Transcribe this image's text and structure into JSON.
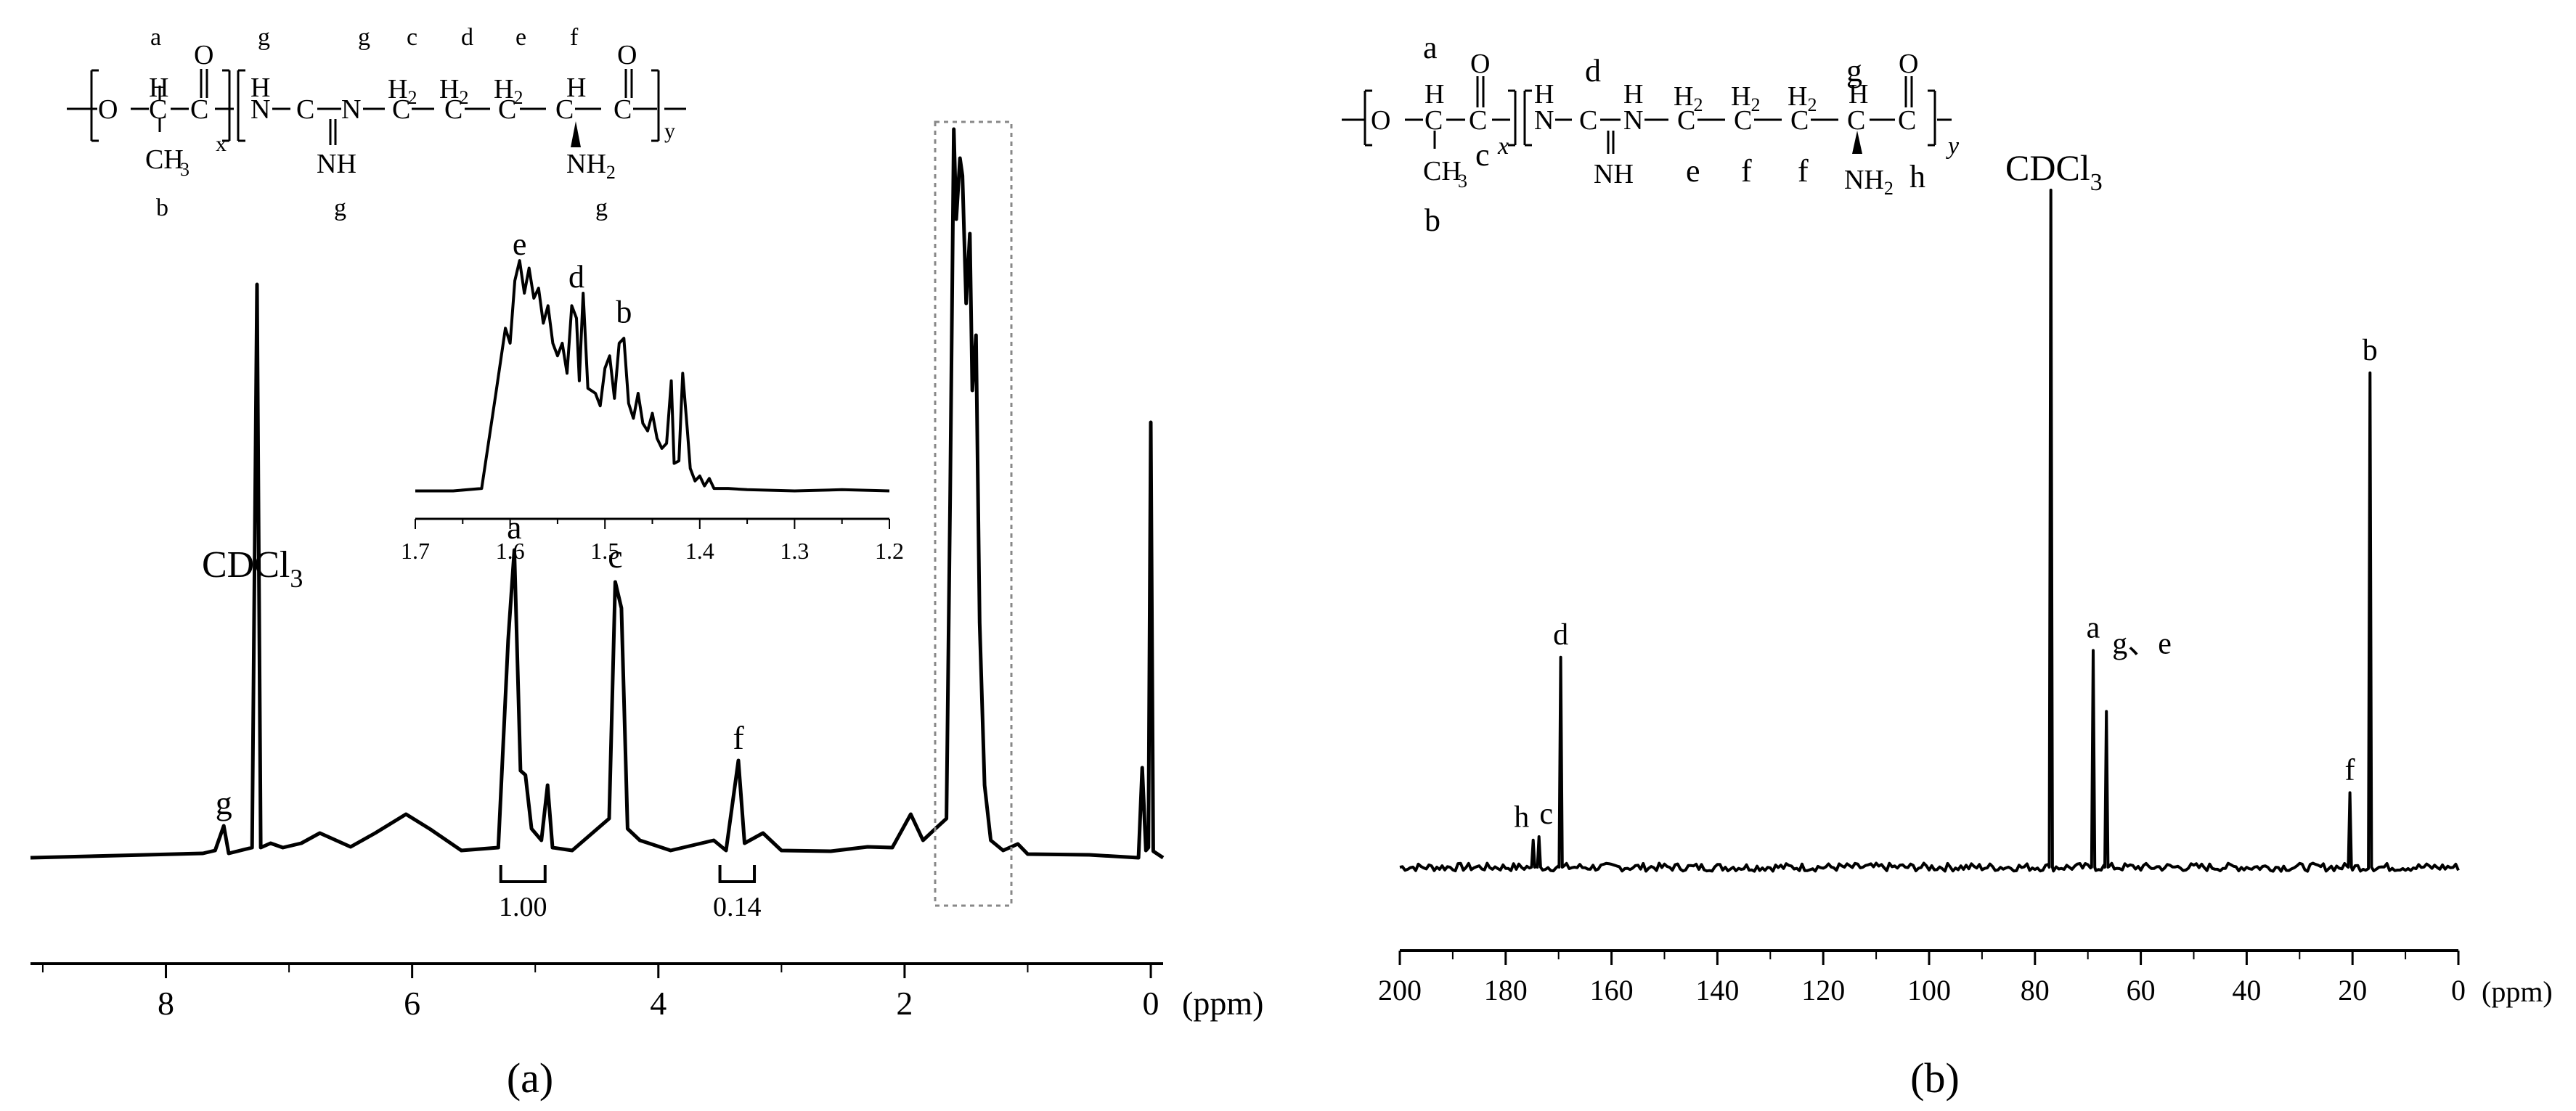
{
  "chart_data": [
    {
      "panel_label": "(a)",
      "type": "line",
      "x_unit": "(ppm)",
      "xlim": [
        9.1,
        -0.1
      ],
      "x_ticks": [
        "8",
        "6",
        "4",
        "2",
        "0"
      ],
      "solvent_label": "CDCl",
      "solvent_sub": "3",
      "structure": {
        "x_sub": "x",
        "y_sub": "y",
        "top_letters": [
          "a",
          "g",
          "g",
          "c",
          "d",
          "e",
          "f"
        ],
        "bottom_letters": [
          "b",
          "g",
          "g"
        ],
        "nh": "NH",
        "ch3": "CH",
        "nh2": "NH",
        "h2": "H"
      },
      "peaks": [
        {
          "label": "g",
          "ppm": 7.53,
          "intensity": 0.04
        },
        {
          "label": "",
          "ppm": 7.26,
          "intensity": 0.79
        },
        {
          "label": "a",
          "ppm": 5.17,
          "intensity": 0.42
        },
        {
          "label": "c",
          "ppm": 4.35,
          "intensity": 0.38
        },
        {
          "label": "f",
          "ppm": 3.35,
          "intensity": 0.13
        }
      ],
      "spectrum": [
        [
          9.1,
          0
        ],
        [
          7.7,
          0.002
        ],
        [
          7.6,
          0.01
        ],
        [
          7.53,
          0.04
        ],
        [
          7.49,
          0.006
        ],
        [
          7.3,
          0.01
        ],
        [
          7.26,
          0.79
        ],
        [
          7.23,
          0.01
        ],
        [
          7.15,
          0.02
        ],
        [
          7.05,
          0.01
        ],
        [
          6.9,
          0.02
        ],
        [
          6.75,
          0.03
        ],
        [
          6.5,
          0.015
        ],
        [
          6.3,
          0.03
        ],
        [
          6.05,
          0.06
        ],
        [
          5.85,
          0.035
        ],
        [
          5.6,
          0.01
        ],
        [
          5.3,
          0.01
        ],
        [
          5.22,
          0.3
        ],
        [
          5.17,
          0.42
        ],
        [
          5.12,
          0.12
        ],
        [
          5.08,
          0.11
        ],
        [
          5.03,
          0.04
        ],
        [
          4.95,
          0.02
        ],
        [
          4.9,
          0.1
        ],
        [
          4.86,
          0.01
        ],
        [
          4.7,
          0.01
        ],
        [
          4.4,
          0.05
        ],
        [
          4.35,
          0.38
        ],
        [
          4.3,
          0.34
        ],
        [
          4.25,
          0.04
        ],
        [
          4.15,
          0.02
        ],
        [
          3.9,
          0.01
        ],
        [
          3.55,
          0.02
        ],
        [
          3.45,
          0.01
        ],
        [
          3.35,
          0.13
        ],
        [
          3.3,
          0.02
        ],
        [
          3.15,
          0.03
        ],
        [
          3.0,
          0.01
        ],
        [
          2.6,
          0.005
        ],
        [
          2.3,
          0.015
        ],
        [
          2.1,
          0.01
        ],
        [
          1.95,
          0.06
        ],
        [
          1.85,
          0.02
        ],
        [
          1.75,
          0.04
        ],
        [
          1.66,
          0.05
        ],
        [
          1.63,
          0.5
        ],
        [
          1.6,
          1.0
        ],
        [
          1.58,
          0.88
        ],
        [
          1.55,
          0.96
        ],
        [
          1.53,
          0.94
        ],
        [
          1.5,
          0.76
        ],
        [
          1.47,
          0.86
        ],
        [
          1.45,
          0.64
        ],
        [
          1.42,
          0.72
        ],
        [
          1.39,
          0.32
        ],
        [
          1.35,
          0.1
        ],
        [
          1.3,
          0.02
        ],
        [
          1.2,
          0.01
        ],
        [
          1.08,
          0.015
        ],
        [
          1.0,
          0.005
        ],
        [
          0.5,
          0
        ],
        [
          0.1,
          0
        ],
        [
          0.07,
          0.12
        ],
        [
          0.04,
          0.01
        ],
        [
          0.02,
          0.01
        ],
        [
          0.0,
          0.6
        ],
        [
          -0.02,
          0.005
        ],
        [
          -0.1,
          0
        ]
      ],
      "integrals": [
        {
          "label": "1.00",
          "from": 5.28,
          "to": 4.92
        },
        {
          "label": "0.14",
          "from": 3.5,
          "to": 3.22
        }
      ],
      "inset": {
        "xlim": [
          1.7,
          1.2
        ],
        "x_ticks": [
          "1.7",
          "1.6",
          "1.5",
          "1.4",
          "1.3",
          "1.2"
        ],
        "peaks": [
          {
            "label": "e",
            "ppm": 1.59,
            "intensity": 0.93
          },
          {
            "label": "d",
            "ppm": 1.53,
            "intensity": 0.8
          },
          {
            "label": "b",
            "ppm": 1.48,
            "intensity": 0.66
          }
        ],
        "spectrum": [
          [
            1.7,
            0.01
          ],
          [
            1.66,
            0.01
          ],
          [
            1.63,
            0.02
          ],
          [
            1.615,
            0.4
          ],
          [
            1.605,
            0.66
          ],
          [
            1.6,
            0.6
          ],
          [
            1.595,
            0.85
          ],
          [
            1.59,
            0.93
          ],
          [
            1.585,
            0.8
          ],
          [
            1.58,
            0.9
          ],
          [
            1.575,
            0.78
          ],
          [
            1.57,
            0.82
          ],
          [
            1.565,
            0.68
          ],
          [
            1.56,
            0.75
          ],
          [
            1.555,
            0.6
          ],
          [
            1.55,
            0.55
          ],
          [
            1.545,
            0.6
          ],
          [
            1.54,
            0.48
          ],
          [
            1.535,
            0.75
          ],
          [
            1.53,
            0.7
          ],
          [
            1.527,
            0.45
          ],
          [
            1.523,
            0.8
          ],
          [
            1.518,
            0.42
          ],
          [
            1.51,
            0.4
          ],
          [
            1.505,
            0.35
          ],
          [
            1.5,
            0.5
          ],
          [
            1.495,
            0.55
          ],
          [
            1.49,
            0.38
          ],
          [
            1.485,
            0.6
          ],
          [
            1.48,
            0.62
          ],
          [
            1.475,
            0.36
          ],
          [
            1.47,
            0.3
          ],
          [
            1.465,
            0.4
          ],
          [
            1.46,
            0.28
          ],
          [
            1.455,
            0.25
          ],
          [
            1.45,
            0.32
          ],
          [
            1.445,
            0.22
          ],
          [
            1.44,
            0.18
          ],
          [
            1.435,
            0.2
          ],
          [
            1.43,
            0.45
          ],
          [
            1.427,
            0.12
          ],
          [
            1.422,
            0.13
          ],
          [
            1.418,
            0.48
          ],
          [
            1.413,
            0.25
          ],
          [
            1.41,
            0.1
          ],
          [
            1.405,
            0.05
          ],
          [
            1.4,
            0.07
          ],
          [
            1.395,
            0.03
          ],
          [
            1.39,
            0.06
          ],
          [
            1.385,
            0.02
          ],
          [
            1.37,
            0.02
          ],
          [
            1.35,
            0.015
          ],
          [
            1.3,
            0.01
          ],
          [
            1.25,
            0.015
          ],
          [
            1.2,
            0.01
          ]
        ]
      }
    },
    {
      "panel_label": "(b)",
      "type": "line",
      "x_unit": "(ppm)",
      "xlim": [
        200,
        0
      ],
      "x_ticks": [
        "200",
        "180",
        "160",
        "140",
        "120",
        "100",
        "80",
        "60",
        "40",
        "20",
        "0"
      ],
      "solvent_label": "CDCl",
      "solvent_sub": "3",
      "structure": {
        "x_sub": "x",
        "y_sub": "y",
        "top_letters": [
          "a",
          "d",
          "g"
        ],
        "bottom_letters": [
          "b",
          "c",
          "e",
          "f",
          "f",
          "h"
        ],
        "nh": "NH",
        "ch3": "CH",
        "nh2": "NH",
        "h2": "H"
      },
      "peaks": [
        {
          "label": "h",
          "ppm": 174.8,
          "intensity": 0.04
        },
        {
          "label": "c",
          "ppm": 173.7,
          "intensity": 0.045
        },
        {
          "label": "d",
          "ppm": 169.6,
          "intensity": 0.31
        },
        {
          "label": "",
          "ppm": 77.0,
          "intensity": 1.0
        },
        {
          "label": "a",
          "ppm": 69.0,
          "intensity": 0.32
        },
        {
          "label": "g、e",
          "ppm": 66.5,
          "intensity": 0.23
        },
        {
          "label": "f",
          "ppm": 20.5,
          "intensity": 0.11
        },
        {
          "label": "b",
          "ppm": 16.7,
          "intensity": 0.73
        }
      ]
    }
  ]
}
